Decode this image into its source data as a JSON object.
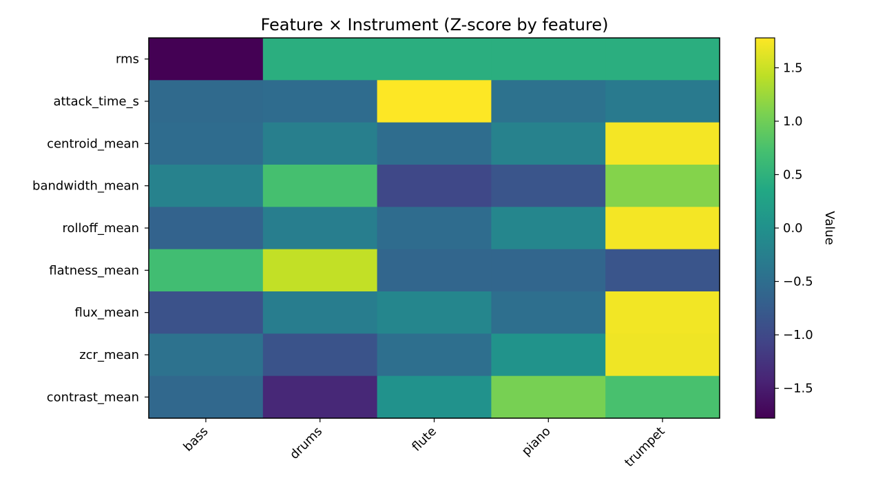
{
  "chart_data": {
    "type": "heatmap",
    "title": "Feature × Instrument (Z-score by feature)",
    "xlabel": "",
    "ylabel": "",
    "colorbar_label": "Value",
    "colormap": "viridis",
    "vmin": -1.78,
    "vmax": 1.78,
    "colorbar_ticks": [
      1.5,
      1.0,
      0.5,
      0.0,
      -0.5,
      -1.0,
      -1.5
    ],
    "colorbar_tick_labels": [
      "1.5",
      "1.0",
      "0.5",
      "0.0",
      "−0.5",
      "−1.0",
      "−1.5"
    ],
    "columns": [
      "bass",
      "drums",
      "flute",
      "piano",
      "trumpet"
    ],
    "rows": [
      "rms",
      "attack_time_s",
      "centroid_mean",
      "bandwidth_mean",
      "rolloff_mean",
      "flatness_mean",
      "flux_mean",
      "zcr_mean",
      "contrast_mean"
    ],
    "values": [
      [
        -1.78,
        0.45,
        0.45,
        0.45,
        0.45
      ],
      [
        -0.55,
        -0.52,
        1.78,
        -0.44,
        -0.33
      ],
      [
        -0.53,
        -0.26,
        -0.51,
        -0.22,
        1.73
      ],
      [
        -0.22,
        0.72,
        -1.02,
        -0.85,
        1.12
      ],
      [
        -0.66,
        -0.27,
        -0.53,
        -0.15,
        1.73
      ],
      [
        0.68,
        1.45,
        -0.61,
        -0.61,
        -0.85
      ],
      [
        -0.88,
        -0.28,
        -0.15,
        -0.49,
        1.72
      ],
      [
        -0.44,
        -0.87,
        -0.48,
        0.03,
        1.7
      ],
      [
        -0.59,
        -1.38,
        0.02,
        1.05,
        0.74
      ]
    ]
  }
}
